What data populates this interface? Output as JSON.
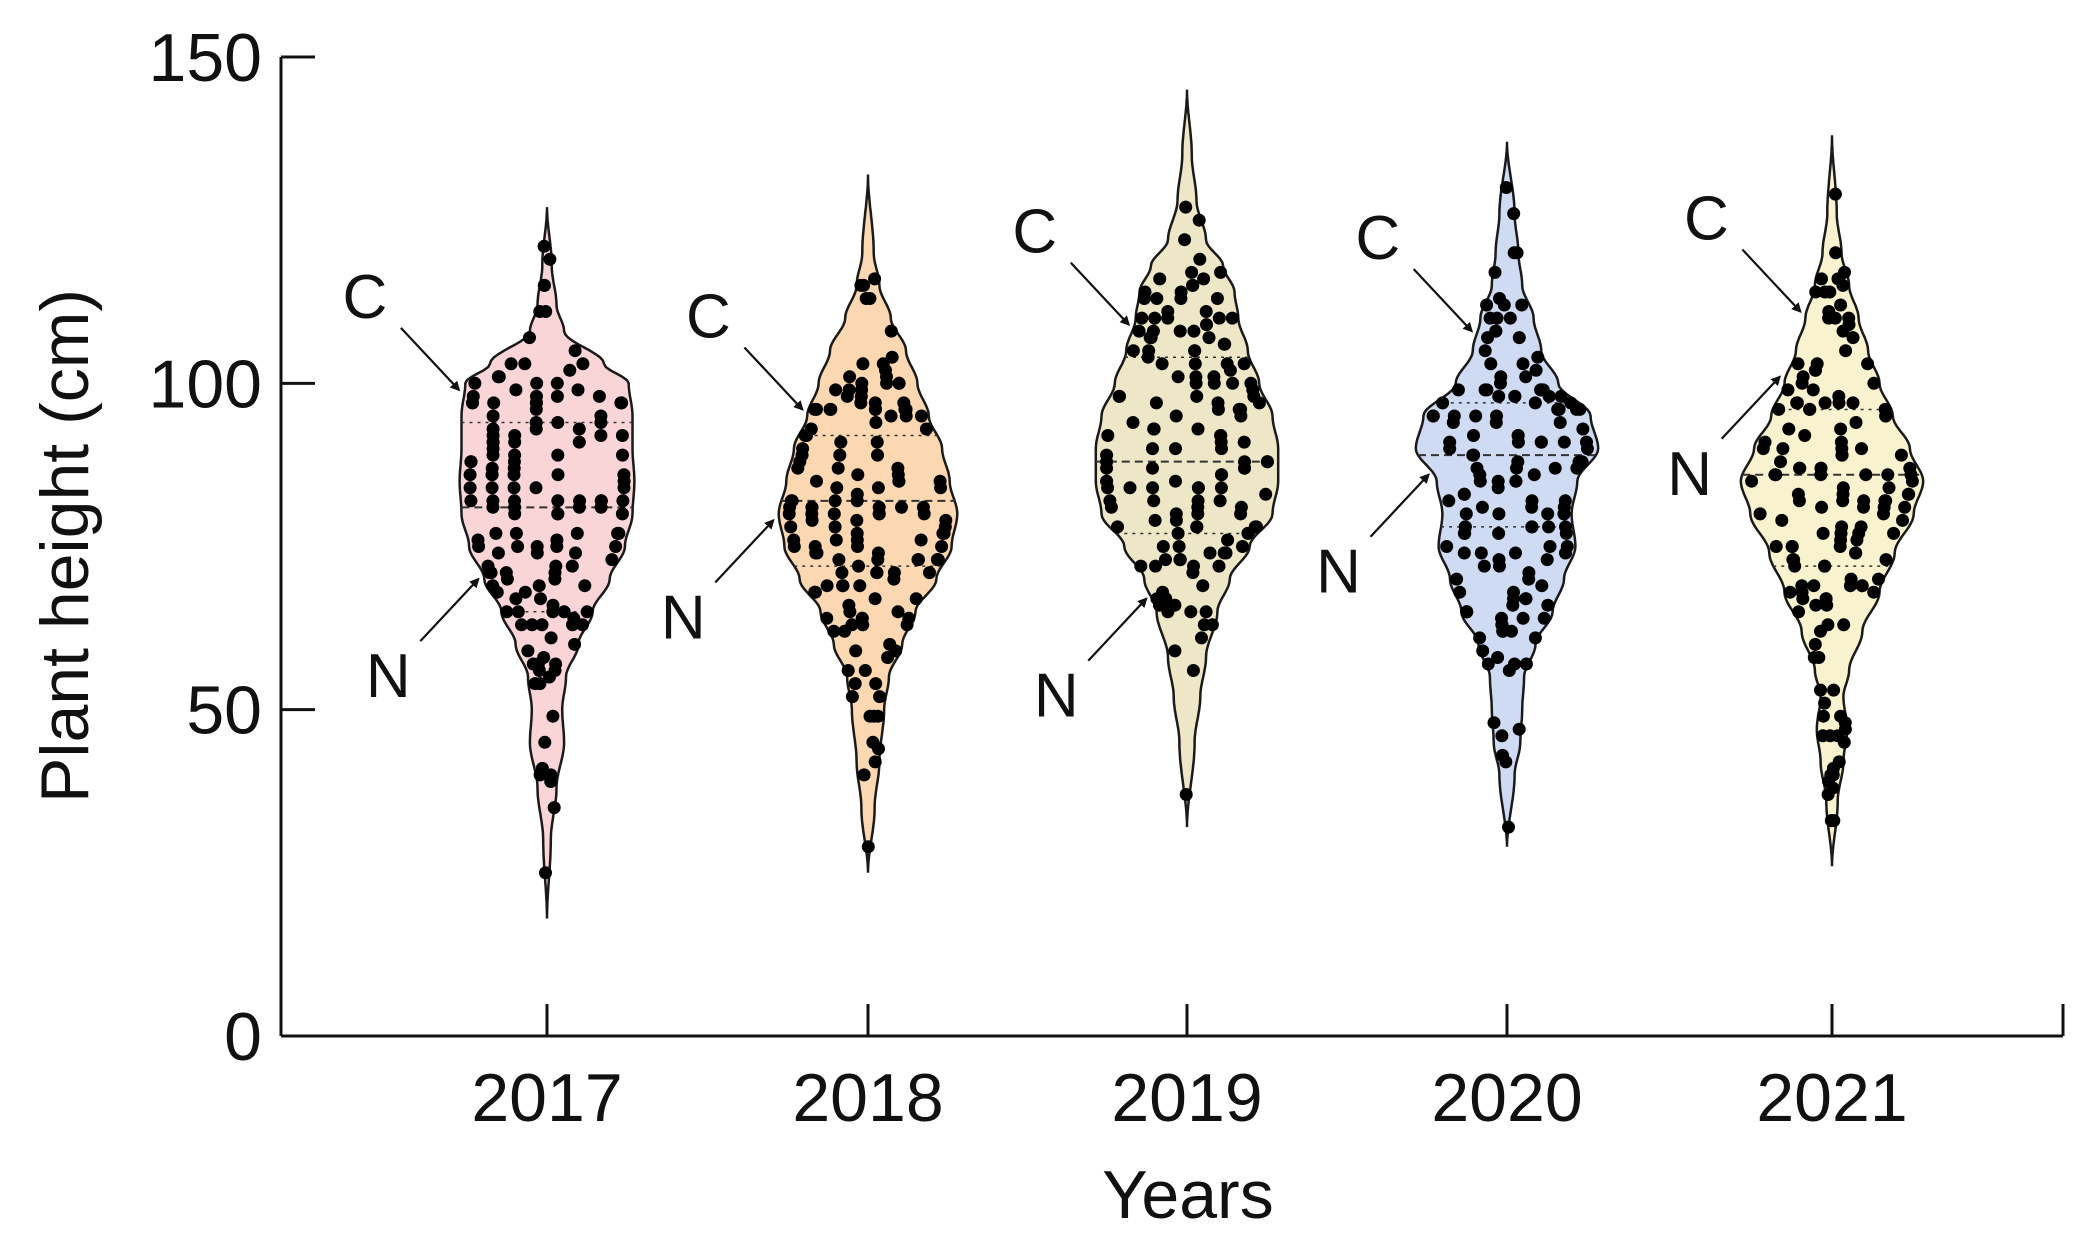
{
  "chart_data": {
    "type": "violin",
    "title": "",
    "xlabel": "Years",
    "ylabel": "Plant height (cm)",
    "ylim": [
      0,
      150
    ],
    "yticks": [
      0,
      50,
      100,
      150
    ],
    "grid": false,
    "legend": "none",
    "categories": [
      "2017",
      "2018",
      "2019",
      "2020",
      "2021"
    ],
    "series": [
      {
        "name": "2017",
        "color": "#f9d5d8",
        "min": 18,
        "max": 127,
        "quartiles": [
          65,
          81,
          94
        ],
        "points_shown": "individual plants (jittered dots)",
        "density_profile": [
          [
            18,
            0.0
          ],
          [
            30,
            0.04
          ],
          [
            38,
            0.1
          ],
          [
            45,
            0.18
          ],
          [
            50,
            0.16
          ],
          [
            55,
            0.2
          ],
          [
            60,
            0.33
          ],
          [
            65,
            0.48
          ],
          [
            70,
            0.66
          ],
          [
            75,
            0.82
          ],
          [
            80,
            0.9
          ],
          [
            85,
            0.92
          ],
          [
            90,
            0.9
          ],
          [
            95,
            0.9
          ],
          [
            100,
            0.86
          ],
          [
            103,
            0.6
          ],
          [
            108,
            0.18
          ],
          [
            112,
            0.1
          ],
          [
            118,
            0.05
          ],
          [
            127,
            0.0
          ]
        ]
      },
      {
        "name": "2018",
        "color": "#fbd7b2",
        "min": 25,
        "max": 132,
        "quartiles": [
          72,
          82,
          92
        ],
        "points_shown": "individual plants (jittered dots)",
        "density_profile": [
          [
            25,
            0.0
          ],
          [
            35,
            0.07
          ],
          [
            42,
            0.12
          ],
          [
            50,
            0.17
          ],
          [
            55,
            0.22
          ],
          [
            60,
            0.36
          ],
          [
            65,
            0.5
          ],
          [
            70,
            0.72
          ],
          [
            75,
            0.88
          ],
          [
            80,
            0.94
          ],
          [
            85,
            0.86
          ],
          [
            90,
            0.78
          ],
          [
            95,
            0.64
          ],
          [
            100,
            0.52
          ],
          [
            105,
            0.4
          ],
          [
            110,
            0.24
          ],
          [
            115,
            0.12
          ],
          [
            120,
            0.06
          ],
          [
            132,
            0.0
          ]
        ]
      },
      {
        "name": "2019",
        "color": "#ede6c7",
        "min": 32,
        "max": 145,
        "quartiles": [
          77,
          88,
          104
        ],
        "points_shown": "individual plants (jittered dots)",
        "density_profile": [
          [
            32,
            0.0
          ],
          [
            45,
            0.08
          ],
          [
            52,
            0.14
          ],
          [
            58,
            0.2
          ],
          [
            65,
            0.32
          ],
          [
            70,
            0.45
          ],
          [
            75,
            0.66
          ],
          [
            80,
            0.9
          ],
          [
            85,
            0.96
          ],
          [
            90,
            0.96
          ],
          [
            95,
            0.9
          ],
          [
            100,
            0.76
          ],
          [
            105,
            0.64
          ],
          [
            110,
            0.54
          ],
          [
            114,
            0.5
          ],
          [
            118,
            0.38
          ],
          [
            122,
            0.2
          ],
          [
            128,
            0.1
          ],
          [
            135,
            0.05
          ],
          [
            145,
            0.0
          ]
        ]
      },
      {
        "name": "2020",
        "color": "#cfdaf3",
        "min": 29,
        "max": 137,
        "quartiles": [
          78,
          89,
          97
        ],
        "points_shown": "individual plants (jittered dots)",
        "density_profile": [
          [
            29,
            0.0
          ],
          [
            40,
            0.08
          ],
          [
            45,
            0.14
          ],
          [
            50,
            0.16
          ],
          [
            55,
            0.18
          ],
          [
            60,
            0.3
          ],
          [
            65,
            0.48
          ],
          [
            70,
            0.6
          ],
          [
            75,
            0.72
          ],
          [
            80,
            0.68
          ],
          [
            85,
            0.74
          ],
          [
            90,
            0.96
          ],
          [
            95,
            0.88
          ],
          [
            100,
            0.54
          ],
          [
            105,
            0.36
          ],
          [
            110,
            0.28
          ],
          [
            115,
            0.16
          ],
          [
            120,
            0.12
          ],
          [
            126,
            0.08
          ],
          [
            137,
            0.0
          ]
        ]
      },
      {
        "name": "2021",
        "color": "#f9f2cf",
        "min": 26,
        "max": 138,
        "quartiles": [
          72,
          86,
          96
        ],
        "points_shown": "individual plants (jittered dots)",
        "density_profile": [
          [
            26,
            0.0
          ],
          [
            36,
            0.06
          ],
          [
            42,
            0.12
          ],
          [
            47,
            0.16
          ],
          [
            52,
            0.12
          ],
          [
            56,
            0.18
          ],
          [
            62,
            0.32
          ],
          [
            68,
            0.5
          ],
          [
            74,
            0.66
          ],
          [
            80,
            0.86
          ],
          [
            85,
            0.96
          ],
          [
            90,
            0.82
          ],
          [
            95,
            0.64
          ],
          [
            100,
            0.5
          ],
          [
            105,
            0.38
          ],
          [
            110,
            0.28
          ],
          [
            115,
            0.18
          ],
          [
            120,
            0.1
          ],
          [
            126,
            0.05
          ],
          [
            138,
            0.0
          ]
        ]
      }
    ],
    "annotations": [
      {
        "category": "2017",
        "label": "C",
        "points_to": 99
      },
      {
        "category": "2017",
        "label": "N",
        "points_to": 70
      },
      {
        "category": "2018",
        "label": "C",
        "points_to": 96
      },
      {
        "category": "2018",
        "label": "N",
        "points_to": 79
      },
      {
        "category": "2019",
        "label": "C",
        "points_to": 109
      },
      {
        "category": "2019",
        "label": "N",
        "points_to": 67
      },
      {
        "category": "2020",
        "label": "C",
        "points_to": 108
      },
      {
        "category": "2020",
        "label": "N",
        "points_to": 86
      },
      {
        "category": "2021",
        "label": "C",
        "points_to": 111
      },
      {
        "category": "2021",
        "label": "N",
        "points_to": 101
      }
    ]
  }
}
